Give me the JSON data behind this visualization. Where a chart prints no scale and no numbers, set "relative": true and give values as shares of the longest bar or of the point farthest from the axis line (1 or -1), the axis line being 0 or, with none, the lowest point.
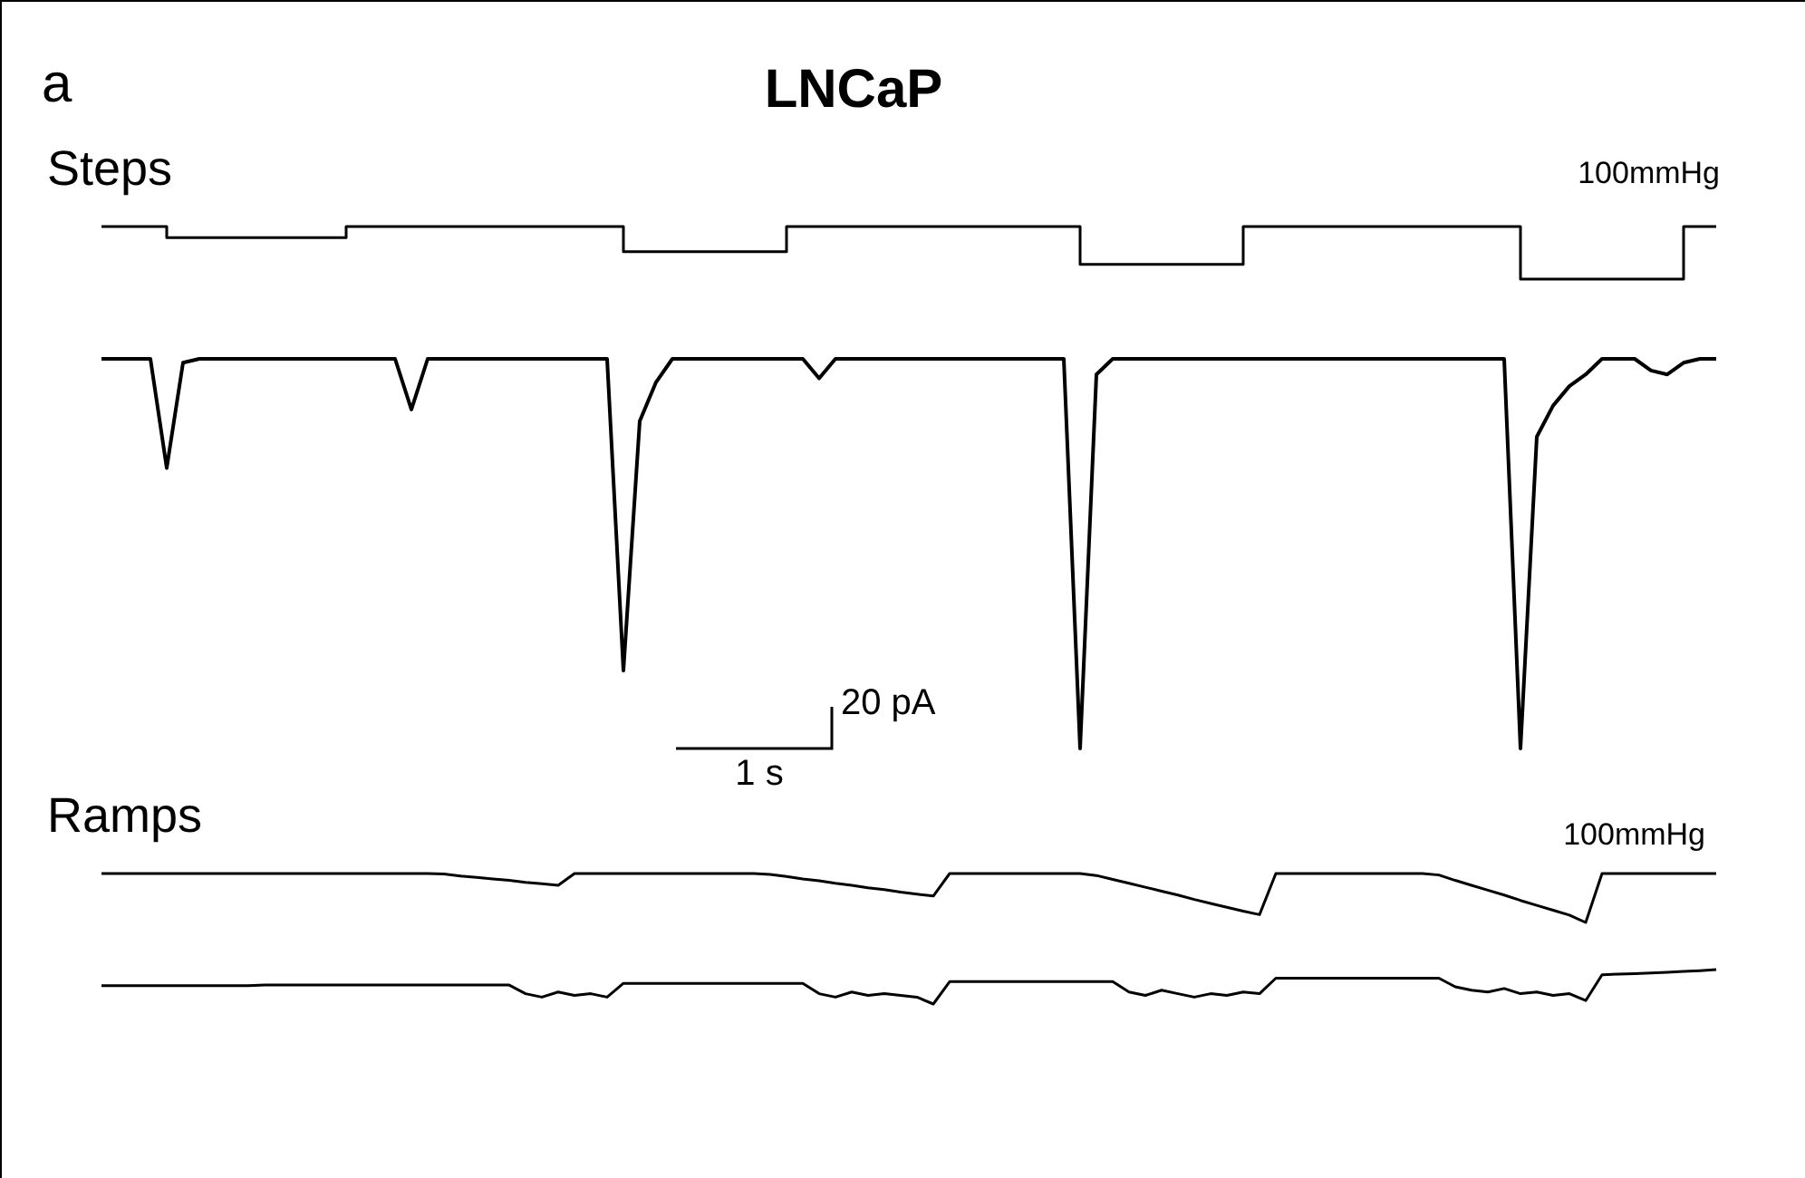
{
  "chart_data": [
    {
      "type": "step",
      "title": "LNCaP",
      "subtitle": "Steps",
      "annotations": [
        "a",
        "100mmHg"
      ],
      "relative": true,
      "color": "#000000",
      "categories": [
        null,
        null,
        null,
        null,
        null,
        null,
        null,
        null,
        null,
        null,
        null,
        null,
        null,
        null,
        null,
        null,
        null,
        null,
        null,
        null,
        null,
        null,
        null,
        null,
        null,
        null,
        null,
        null,
        null,
        null,
        null,
        null,
        null,
        null,
        null,
        null,
        null,
        null,
        null,
        null,
        null,
        null,
        null,
        null,
        null,
        null,
        null,
        null,
        null,
        null,
        null,
        null,
        null,
        null,
        null,
        null,
        null,
        null,
        null,
        null,
        null,
        null,
        null,
        null,
        null,
        null,
        null,
        null,
        null,
        null,
        null,
        null,
        null,
        null,
        null,
        null,
        null,
        null,
        null,
        null,
        null,
        null,
        null,
        null,
        null,
        null,
        null,
        null,
        null,
        null,
        null,
        null,
        null,
        null,
        null,
        null,
        null,
        null,
        null,
        null
      ],
      "values": [
        1,
        1,
        1,
        1,
        0.79,
        0.79,
        0.79,
        0.79,
        0.79,
        0.79,
        0.79,
        0.79,
        0.79,
        0.79,
        0.79,
        1,
        1,
        1,
        1,
        1,
        1,
        1,
        1,
        1,
        1,
        1,
        1,
        1,
        1,
        1,
        1,
        1,
        0.52,
        0.52,
        0.52,
        0.52,
        0.52,
        0.52,
        0.52,
        0.52,
        0.52,
        0.52,
        1,
        1,
        1,
        1,
        1,
        1,
        1,
        1,
        1,
        1,
        1,
        1,
        1,
        1,
        1,
        1,
        1,
        1,
        0.28,
        0.28,
        0.28,
        0.28,
        0.28,
        0.28,
        0.28,
        0.28,
        0.28,
        0.28,
        1,
        1,
        1,
        1,
        1,
        1,
        1,
        1,
        1,
        1,
        1,
        1,
        1,
        1,
        1,
        1,
        1,
        0,
        0,
        0,
        0,
        0,
        0,
        0,
        0,
        0,
        0,
        1,
        1,
        1
      ]
    },
    {
      "type": "line",
      "annotations": [
        "20 pA",
        "1 s"
      ],
      "relative": true,
      "color": "#000000",
      "categories": [
        null,
        null,
        null,
        null,
        null,
        null,
        null,
        null,
        null,
        null,
        null,
        null,
        null,
        null,
        null,
        null,
        null,
        null,
        null,
        null,
        null,
        null,
        null,
        null,
        null,
        null,
        null,
        null,
        null,
        null,
        null,
        null,
        null,
        null,
        null,
        null,
        null,
        null,
        null,
        null,
        null,
        null,
        null,
        null,
        null,
        null,
        null,
        null,
        null,
        null,
        null,
        null,
        null,
        null,
        null,
        null,
        null,
        null,
        null,
        null,
        null,
        null,
        null,
        null,
        null,
        null,
        null,
        null,
        null,
        null,
        null,
        null,
        null,
        null,
        null,
        null,
        null,
        null,
        null,
        null,
        null,
        null,
        null,
        null,
        null,
        null,
        null,
        null,
        null,
        null,
        null,
        null,
        null,
        null,
        null,
        null,
        null,
        null,
        null,
        null
      ],
      "values": [
        1,
        1,
        1,
        1,
        0.72,
        0.99,
        1,
        1,
        1,
        1,
        1,
        1,
        1,
        1,
        1,
        1,
        1,
        1,
        1,
        0.87,
        1,
        1,
        1,
        1,
        1,
        1,
        1,
        1,
        1,
        1,
        1,
        1,
        0.2,
        0.84,
        0.94,
        1,
        1,
        1,
        1,
        1,
        1,
        1,
        1,
        1,
        0.95,
        1,
        1,
        1,
        1,
        1,
        1,
        1,
        1,
        1,
        1,
        1,
        1,
        1,
        1,
        1,
        0,
        0.96,
        1,
        1,
        1,
        1,
        1,
        1,
        1,
        1,
        1,
        1,
        1,
        1,
        1,
        1,
        1,
        1,
        1,
        1,
        1,
        1,
        1,
        1,
        1,
        1,
        1,
        0,
        0.8,
        0.88,
        0.93,
        0.96,
        1,
        1,
        1,
        0.97,
        0.96,
        0.99,
        1,
        1
      ]
    },
    {
      "type": "line",
      "subtitle": "Ramps",
      "annotations": [
        "100mmHg"
      ],
      "relative": true,
      "color": "#000000",
      "categories": [
        null,
        null,
        null,
        null,
        null,
        null,
        null,
        null,
        null,
        null,
        null,
        null,
        null,
        null,
        null,
        null,
        null,
        null,
        null,
        null,
        null,
        null,
        null,
        null,
        null,
        null,
        null,
        null,
        null,
        null,
        null,
        null,
        null,
        null,
        null,
        null,
        null,
        null,
        null,
        null,
        null,
        null,
        null,
        null,
        null,
        null,
        null,
        null,
        null,
        null,
        null,
        null,
        null,
        null,
        null,
        null,
        null,
        null,
        null,
        null,
        null,
        null,
        null,
        null,
        null,
        null,
        null,
        null,
        null,
        null,
        null,
        null,
        null,
        null,
        null,
        null,
        null,
        null,
        null,
        null,
        null,
        null,
        null,
        null,
        null,
        null,
        null,
        null,
        null,
        null,
        null,
        null,
        null,
        null,
        null,
        null,
        null,
        null,
        null,
        null
      ],
      "values": [
        1,
        1,
        1,
        1,
        1,
        1,
        1,
        1,
        1,
        1,
        1,
        1,
        1,
        1,
        1,
        1,
        1,
        1,
        1,
        1,
        1,
        0.99,
        0.95,
        0.92,
        0.89,
        0.86,
        0.82,
        0.79,
        0.76,
        1,
        1,
        1,
        1,
        1,
        1,
        1,
        1,
        1,
        1,
        1,
        1,
        0.98,
        0.94,
        0.89,
        0.85,
        0.8,
        0.76,
        0.71,
        0.67,
        0.62,
        0.58,
        0.54,
        1,
        1,
        1,
        1,
        1,
        1,
        1,
        1,
        1,
        0.96,
        0.88,
        0.8,
        0.72,
        0.64,
        0.56,
        0.47,
        0.39,
        0.31,
        0.23,
        0.16,
        1,
        1,
        1,
        1,
        1,
        1,
        1,
        1,
        1,
        1,
        0.97,
        0.86,
        0.76,
        0.66,
        0.56,
        0.45,
        0.35,
        0.25,
        0.15,
        0,
        1,
        1,
        1,
        1,
        1,
        1,
        1,
        1
      ]
    },
    {
      "type": "line",
      "relative": true,
      "color": "#000000",
      "categories": [
        null,
        null,
        null,
        null,
        null,
        null,
        null,
        null,
        null,
        null,
        null,
        null,
        null,
        null,
        null,
        null,
        null,
        null,
        null,
        null,
        null,
        null,
        null,
        null,
        null,
        null,
        null,
        null,
        null,
        null,
        null,
        null,
        null,
        null,
        null,
        null,
        null,
        null,
        null,
        null,
        null,
        null,
        null,
        null,
        null,
        null,
        null,
        null,
        null,
        null,
        null,
        null,
        null,
        null,
        null,
        null,
        null,
        null,
        null,
        null,
        null,
        null,
        null,
        null,
        null,
        null,
        null,
        null,
        null,
        null,
        null,
        null,
        null,
        null,
        null,
        null,
        null,
        null,
        null,
        null,
        null,
        null,
        null,
        null,
        null,
        null,
        null,
        null,
        null,
        null,
        null,
        null,
        null,
        null,
        null,
        null,
        null,
        null,
        null,
        null
      ],
      "values": [
        0.53,
        0.53,
        0.53,
        0.53,
        0.53,
        0.53,
        0.53,
        0.53,
        0.53,
        0.53,
        0.55,
        0.55,
        0.55,
        0.55,
        0.55,
        0.55,
        0.55,
        0.55,
        0.55,
        0.55,
        0.55,
        0.55,
        0.55,
        0.55,
        0.55,
        0.55,
        0.3,
        0.2,
        0.35,
        0.25,
        0.3,
        0.2,
        0.6,
        0.6,
        0.6,
        0.6,
        0.6,
        0.6,
        0.6,
        0.6,
        0.6,
        0.6,
        0.6,
        0.6,
        0.3,
        0.2,
        0.35,
        0.25,
        0.3,
        0.25,
        0.2,
        0,
        0.65,
        0.65,
        0.65,
        0.65,
        0.65,
        0.65,
        0.65,
        0.65,
        0.65,
        0.65,
        0.65,
        0.35,
        0.25,
        0.4,
        0.3,
        0.2,
        0.3,
        0.25,
        0.35,
        0.3,
        0.75,
        0.75,
        0.75,
        0.75,
        0.75,
        0.75,
        0.75,
        0.75,
        0.75,
        0.75,
        0.75,
        0.5,
        0.4,
        0.35,
        0.45,
        0.3,
        0.35,
        0.25,
        0.3,
        0.1,
        0.85,
        0.87,
        0.88,
        0.9,
        0.92,
        0.95,
        0.97,
        1
      ]
    }
  ]
}
